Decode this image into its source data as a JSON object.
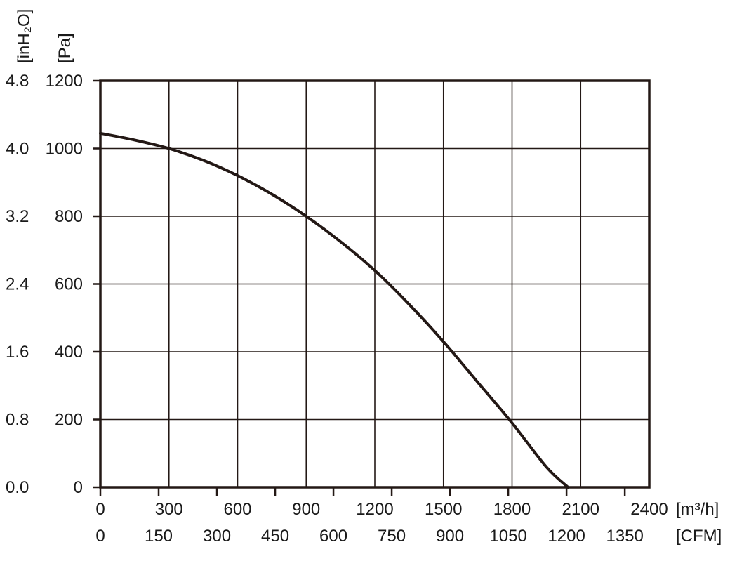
{
  "chart_data": {
    "type": "line",
    "title": "",
    "x_primary": {
      "unit_label": "[m³/h]",
      "range": [
        0,
        2400
      ],
      "ticks": [
        "0",
        "300",
        "600",
        "900",
        "1200",
        "1500",
        "1800",
        "2100",
        "2400"
      ]
    },
    "x_secondary": {
      "unit_label": "[CFM]",
      "range": [
        0,
        1413
      ],
      "ticks": [
        "0",
        "150",
        "300",
        "450",
        "600",
        "750",
        "900",
        "1050",
        "1200",
        "1350"
      ]
    },
    "y_primary": {
      "unit_label": "[Pa]",
      "range": [
        0,
        1200
      ],
      "ticks": [
        "0",
        "200",
        "400",
        "600",
        "800",
        "1000",
        "1200"
      ]
    },
    "y_secondary": {
      "unit_label": "[inH₂O]",
      "range": [
        0,
        4.8
      ],
      "ticks": [
        "0.0",
        "0.8",
        "1.6",
        "2.4",
        "3.2",
        "4.0",
        "4.8"
      ]
    },
    "grid": true,
    "series": [
      {
        "x": [
          0,
          150,
          300,
          450,
          600,
          750,
          900,
          1050,
          1200,
          1350,
          1500,
          1650,
          1800,
          1950,
          2045
        ],
        "y": [
          1045,
          1025,
          1000,
          965,
          920,
          865,
          800,
          725,
          640,
          540,
          430,
          310,
          190,
          60,
          0
        ]
      }
    ]
  }
}
